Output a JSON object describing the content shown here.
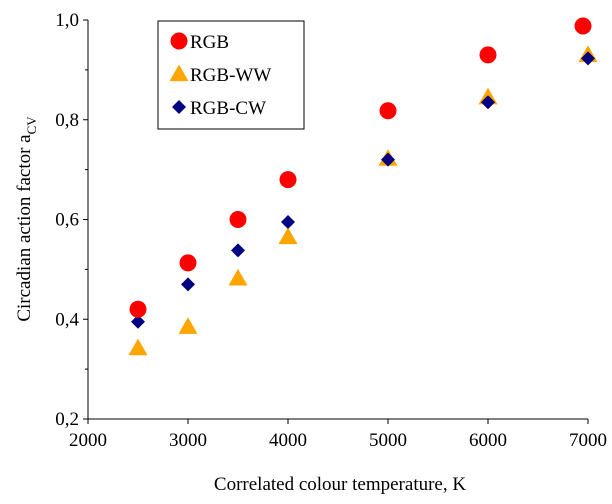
{
  "chart_data": {
    "type": "scatter",
    "xlabel": "Correlated colour temperature, K",
    "ylabel": "Circadian action factor a",
    "ylabel_subscript": "CV",
    "xlim": [
      2000,
      7000
    ],
    "ylim": [
      0.2,
      1.0
    ],
    "x_ticks": [
      2000,
      3000,
      4000,
      5000,
      6000,
      7000
    ],
    "x_tick_labels": [
      "2000",
      "3000",
      "4000",
      "5000",
      "6000",
      "7000"
    ],
    "y_ticks": [
      0.2,
      0.4,
      0.6,
      0.8,
      1.0
    ],
    "y_tick_labels": [
      "0,2",
      "0,4",
      "0,6",
      "0,8",
      "1,0"
    ],
    "grid": false,
    "legend_position": "top-left",
    "series": [
      {
        "name": "RGB",
        "marker": "circle",
        "color": "#FF0000",
        "x": [
          2500,
          3000,
          3500,
          4000,
          5000,
          6000,
          6950
        ],
        "y": [
          0.42,
          0.513,
          0.6,
          0.68,
          0.818,
          0.93,
          0.988
        ]
      },
      {
        "name": "RGB-WW",
        "marker": "triangle",
        "color": "#FFA500",
        "x": [
          2500,
          3000,
          3500,
          4000,
          5000,
          6000,
          7000
        ],
        "y": [
          0.342,
          0.385,
          0.482,
          0.565,
          0.722,
          0.845,
          0.93
        ]
      },
      {
        "name": "RGB-CW",
        "marker": "diamond",
        "color": "#000080",
        "x": [
          2500,
          3000,
          3500,
          4000,
          5000,
          6000,
          7000
        ],
        "y": [
          0.395,
          0.47,
          0.538,
          0.595,
          0.72,
          0.835,
          0.923
        ]
      }
    ]
  }
}
